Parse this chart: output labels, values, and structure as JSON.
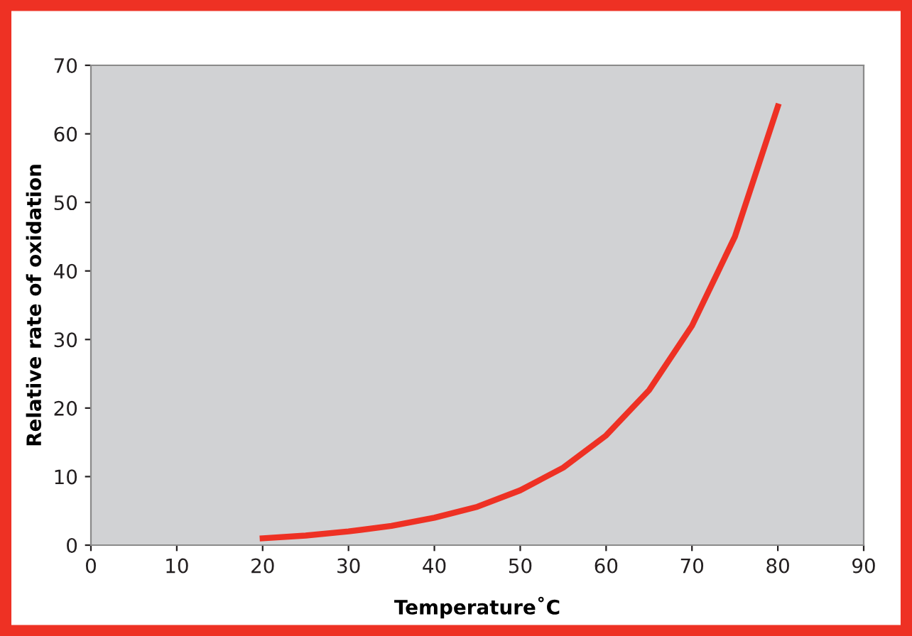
{
  "chart_data": {
    "type": "line",
    "xlabel": "Temperature˚C",
    "ylabel": "Relative rate of oxidation",
    "x": [
      20,
      25,
      30,
      35,
      40,
      45,
      50,
      55,
      60,
      65,
      70,
      75,
      80
    ],
    "series": [
      {
        "color": "#ee3124",
        "values": [
          1,
          1.4,
          2,
          2.8,
          4,
          5.6,
          8,
          11.3,
          16,
          22.6,
          32,
          45,
          64
        ]
      }
    ],
    "xlim": [
      0,
      90
    ],
    "xticks": [
      0,
      10,
      20,
      30,
      40,
      50,
      60,
      70,
      80,
      90
    ],
    "ylim": [
      0,
      70
    ],
    "yticks": [
      0,
      10,
      20,
      30,
      40,
      50,
      60,
      70
    ],
    "grid": false,
    "legend": false,
    "marker": "none",
    "line_style": "solid"
  }
}
